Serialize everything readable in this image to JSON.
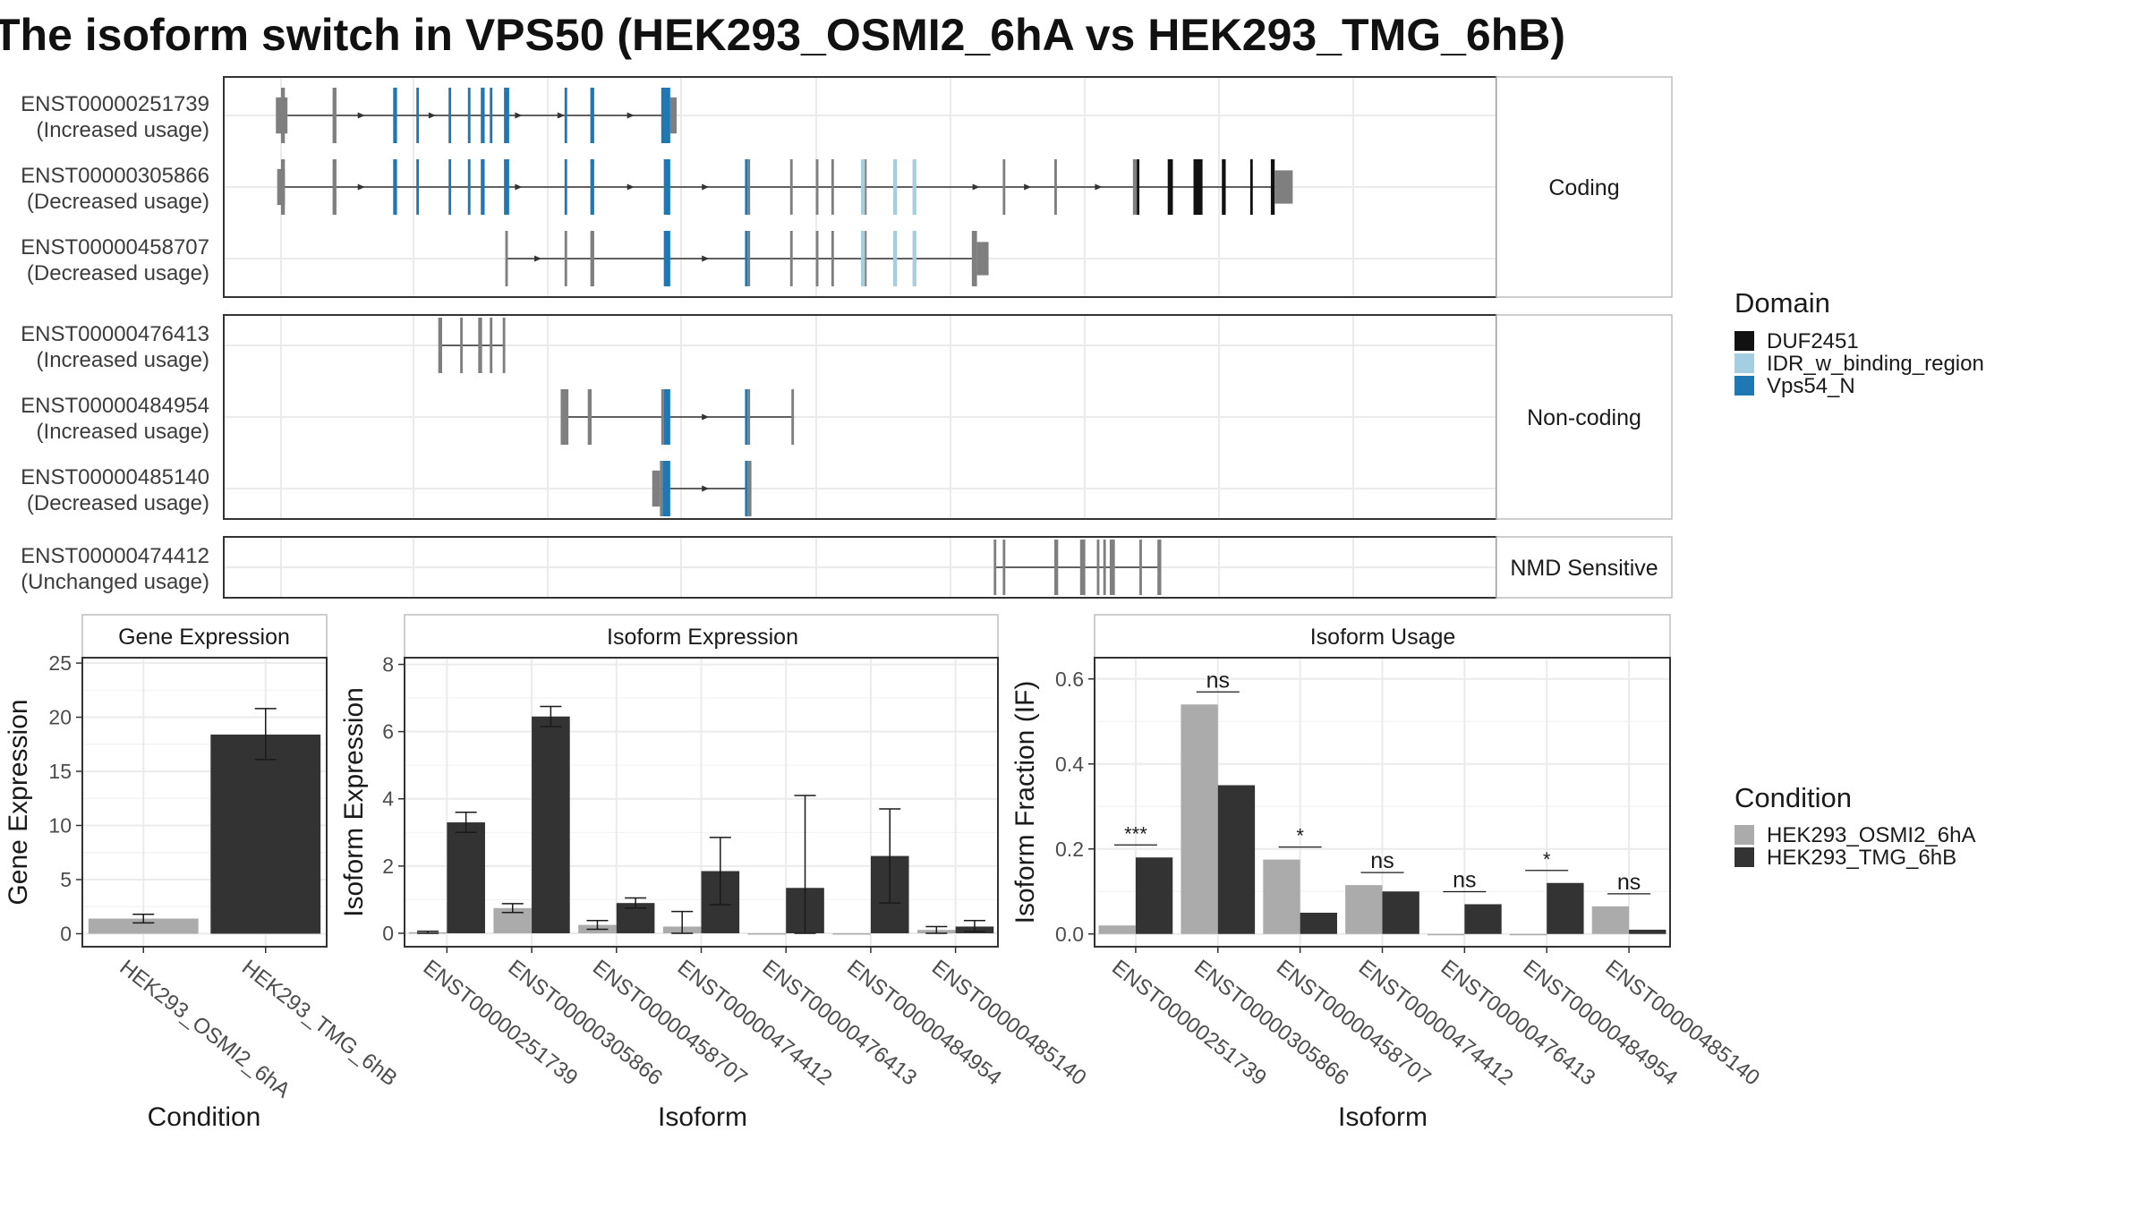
{
  "title": "The isoform switch in VPS50 (HEK293_OSMI2_6hA vs HEK293_TMG_6hB)",
  "colors": {
    "condition_a": "#ABABAB",
    "condition_b": "#333333",
    "exon": "#7F7F7F",
    "intron": "#333333",
    "DUF2451": "#111111",
    "IDR_w_binding_region": "#A6CEE3",
    "Vps54_N": "#1F78B4",
    "panel_border": "#333333",
    "strip_border": "#bdbdbd",
    "grid": "#ebebeb"
  },
  "legends": {
    "domain": {
      "title": "Domain",
      "items": [
        {
          "label": "DUF2451",
          "color": "#111111"
        },
        {
          "label": "IDR_w_binding_region",
          "color": "#A6CEE3"
        },
        {
          "label": "Vps54_N",
          "color": "#1F78B4"
        }
      ]
    },
    "condition": {
      "title": "Condition",
      "items": [
        {
          "label": "HEK293_OSMI2_6hA",
          "color": "#ABABAB"
        },
        {
          "label": "HEK293_TMG_6hB",
          "color": "#333333"
        }
      ]
    }
  },
  "structure": {
    "groups": [
      {
        "label": "Coding",
        "transcripts": [
          {
            "id": "ENST00000251739",
            "status": "(Increased usage)",
            "exons": [
              [
                -0.4,
                0.5,
                0.65,
                "exon"
              ],
              [
                0.0,
                0.3,
                1.0,
                "exon"
              ],
              [
                4.0,
                4.3,
                1.0,
                "exon"
              ],
              [
                8.7,
                9.0,
                1.0,
                "Vps54_N"
              ],
              [
                10.5,
                10.7,
                1.0,
                "Vps54_N"
              ],
              [
                13.0,
                13.2,
                1.0,
                "Vps54_N"
              ],
              [
                14.5,
                14.7,
                1.0,
                "Vps54_N"
              ],
              [
                15.5,
                15.8,
                1.0,
                "Vps54_N"
              ],
              [
                16.2,
                16.4,
                1.0,
                "Vps54_N"
              ],
              [
                17.3,
                17.7,
                1.0,
                "Vps54_N"
              ],
              [
                22.0,
                22.2,
                1.0,
                "Vps54_N"
              ],
              [
                24.0,
                24.3,
                1.0,
                "Vps54_N"
              ],
              [
                29.5,
                30.2,
                1.0,
                "Vps54_N"
              ],
              [
                30.2,
                30.7,
                0.65,
                "exon"
              ]
            ],
            "intron": [
              0.5,
              30.2
            ],
            "arrows": [
              6.3,
              11.8,
              18.5,
              21.8,
              27.2
            ]
          },
          {
            "id": "ENST00000305866",
            "status": "(Decreased usage)",
            "exons": [
              [
                -0.3,
                0.3,
                0.65,
                "exon"
              ],
              [
                0.0,
                0.3,
                1.0,
                "exon"
              ],
              [
                4.0,
                4.3,
                1.0,
                "exon"
              ],
              [
                8.7,
                9.0,
                1.0,
                "Vps54_N"
              ],
              [
                10.5,
                10.7,
                1.0,
                "Vps54_N"
              ],
              [
                13.0,
                13.2,
                1.0,
                "Vps54_N"
              ],
              [
                14.5,
                14.7,
                1.0,
                "Vps54_N"
              ],
              [
                15.5,
                15.8,
                1.0,
                "Vps54_N"
              ],
              [
                17.3,
                17.7,
                1.0,
                "Vps54_N"
              ],
              [
                22.0,
                22.2,
                1.0,
                "Vps54_N"
              ],
              [
                24.0,
                24.3,
                1.0,
                "Vps54_N"
              ],
              [
                29.7,
                30.2,
                1.0,
                "Vps54_N"
              ],
              [
                36.0,
                36.2,
                1.0,
                "Vps54_N"
              ],
              [
                36.2,
                36.4,
                1.0,
                "exon"
              ],
              [
                39.5,
                39.7,
                1.0,
                "exon"
              ],
              [
                41.5,
                41.7,
                1.0,
                "exon"
              ],
              [
                42.7,
                42.9,
                1.0,
                "exon"
              ],
              [
                45.0,
                45.3,
                1.0,
                "IDR_w_binding_region"
              ],
              [
                45.3,
                45.4,
                1.0,
                "exon"
              ],
              [
                47.5,
                47.8,
                1.0,
                "IDR_w_binding_region"
              ],
              [
                49.0,
                49.3,
                1.0,
                "IDR_w_binding_region"
              ],
              [
                56.0,
                56.2,
                1.0,
                "exon"
              ],
              [
                60.0,
                60.2,
                1.0,
                "exon"
              ],
              [
                66.1,
                66.4,
                1.0,
                "exon"
              ],
              [
                66.4,
                66.6,
                1.0,
                "DUF2451"
              ],
              [
                68.8,
                69.2,
                1.0,
                "DUF2451"
              ],
              [
                70.8,
                71.5,
                1.0,
                "DUF2451"
              ],
              [
                73.0,
                73.3,
                1.0,
                "DUF2451"
              ],
              [
                75.2,
                75.4,
                1.0,
                "DUF2451"
              ],
              [
                76.8,
                77.1,
                1.0,
                "DUF2451"
              ],
              [
                77.1,
                78.5,
                0.6,
                "exon"
              ]
            ],
            "intron": [
              0.3,
              77.5
            ],
            "arrows": [
              6.3,
              18.5,
              27.2,
              33.0,
              54.0,
              58.0,
              63.5
            ]
          },
          {
            "id": "ENST00000458707",
            "status": "(Decreased usage)",
            "exons": [
              [
                17.4,
                17.6,
                1.0,
                "exon"
              ],
              [
                22.0,
                22.2,
                1.0,
                "exon"
              ],
              [
                24.0,
                24.3,
                1.0,
                "exon"
              ],
              [
                29.7,
                30.2,
                1.0,
                "Vps54_N"
              ],
              [
                36.0,
                36.2,
                1.0,
                "Vps54_N"
              ],
              [
                36.2,
                36.4,
                1.0,
                "exon"
              ],
              [
                39.5,
                39.7,
                1.0,
                "exon"
              ],
              [
                41.5,
                41.7,
                1.0,
                "exon"
              ],
              [
                42.7,
                42.9,
                1.0,
                "exon"
              ],
              [
                45.0,
                45.3,
                1.0,
                "IDR_w_binding_region"
              ],
              [
                45.3,
                45.4,
                1.0,
                "exon"
              ],
              [
                47.5,
                47.8,
                1.0,
                "IDR_w_binding_region"
              ],
              [
                49.0,
                49.3,
                1.0,
                "IDR_w_binding_region"
              ],
              [
                53.6,
                54.0,
                1.0,
                "exon"
              ],
              [
                54.0,
                54.9,
                0.6,
                "exon"
              ]
            ],
            "intron": [
              17.5,
              54.0
            ],
            "arrows": [
              20.0,
              33.0
            ]
          }
        ]
      },
      {
        "label": "Non-coding",
        "transcripts": [
          {
            "id": "ENST00000476413",
            "status": "(Increased usage)",
            "exons": [
              [
                12.2,
                12.5,
                1.0,
                "exon"
              ],
              [
                13.9,
                14.1,
                1.0,
                "exon"
              ],
              [
                15.3,
                15.6,
                1.0,
                "exon"
              ],
              [
                16.2,
                16.4,
                1.0,
                "exon"
              ],
              [
                17.2,
                17.4,
                1.0,
                "exon"
              ]
            ],
            "intron": [
              12.4,
              17.4
            ],
            "arrows": []
          },
          {
            "id": "ENST00000484954",
            "status": "(Increased usage)",
            "exons": [
              [
                21.7,
                22.3,
                1.0,
                "exon"
              ],
              [
                23.8,
                24.1,
                1.0,
                "exon"
              ],
              [
                29.5,
                29.7,
                1.0,
                "exon"
              ],
              [
                29.7,
                30.2,
                1.0,
                "Vps54_N"
              ],
              [
                36.0,
                36.2,
                1.0,
                "Vps54_N"
              ],
              [
                36.2,
                36.4,
                1.0,
                "exon"
              ],
              [
                39.6,
                39.8,
                1.0,
                "exon"
              ]
            ],
            "intron": [
              22.0,
              39.8
            ],
            "arrows": [
              33.0
            ]
          },
          {
            "id": "ENST00000485140",
            "status": "(Decreased usage)",
            "exons": [
              [
                28.8,
                29.4,
                0.65,
                "exon"
              ],
              [
                29.4,
                29.6,
                1.0,
                "exon"
              ],
              [
                29.6,
                30.2,
                1.0,
                "Vps54_N"
              ],
              [
                36.0,
                36.2,
                1.0,
                "Vps54_N"
              ],
              [
                36.2,
                36.5,
                1.0,
                "exon"
              ]
            ],
            "intron": [
              29.5,
              36.3
            ],
            "arrows": [
              33.0
            ]
          }
        ]
      },
      {
        "label": "NMD Sensitive",
        "transcripts": [
          {
            "id": "ENST00000474412",
            "status": "(Unchanged usage)",
            "exons": [
              [
                55.3,
                55.5,
                1.0,
                "exon"
              ],
              [
                56.0,
                56.2,
                1.0,
                "exon"
              ],
              [
                60.0,
                60.3,
                1.0,
                "exon"
              ],
              [
                62.0,
                62.4,
                1.0,
                "exon"
              ],
              [
                63.3,
                63.5,
                1.0,
                "exon"
              ],
              [
                63.8,
                64.0,
                1.0,
                "exon"
              ],
              [
                64.3,
                64.7,
                1.0,
                "exon"
              ],
              [
                66.6,
                66.8,
                1.0,
                "exon"
              ],
              [
                68.0,
                68.3,
                1.0,
                "exon"
              ]
            ],
            "intron": [
              55.4,
              68.2
            ],
            "arrows": []
          }
        ]
      }
    ]
  },
  "chart_data": [
    {
      "type": "bar",
      "panel": "Gene Expression",
      "xlabel": "Condition",
      "ylabel": "Gene Expression",
      "categories": [
        "HEK293_OSMI2_6hA",
        "HEK293_TMG_6hB"
      ],
      "values": [
        1.4,
        18.4
      ],
      "error": [
        [
          1.0,
          1.8
        ],
        [
          16.1,
          20.8
        ]
      ],
      "yticks": [
        0,
        5,
        10,
        15,
        20,
        25
      ],
      "ylim": [
        -1.2,
        25.5
      ]
    },
    {
      "type": "bar",
      "panel": "Isoform Expression",
      "xlabel": "Isoform",
      "ylabel": "Isoform Expression",
      "categories": [
        "ENST00000251739",
        "ENST00000305866",
        "ENST00000458707",
        "ENST00000474412",
        "ENST00000476413",
        "ENST00000484954",
        "ENST00000485140"
      ],
      "series": [
        {
          "name": "HEK293_OSMI2_6hA",
          "values": [
            0.03,
            0.75,
            0.25,
            0.2,
            0.0,
            0.0,
            0.1
          ],
          "error": [
            [
              0.0,
              0.06
            ],
            [
              0.62,
              0.88
            ],
            [
              0.12,
              0.38
            ],
            [
              0.0,
              0.65
            ],
            [
              0,
              0
            ],
            [
              0,
              0
            ],
            [
              0.0,
              0.2
            ]
          ]
        },
        {
          "name": "HEK293_TMG_6hB",
          "values": [
            3.3,
            6.45,
            0.9,
            1.85,
            1.35,
            2.3,
            0.2
          ],
          "error": [
            [
              3.0,
              3.6
            ],
            [
              6.15,
              6.75
            ],
            [
              0.75,
              1.05
            ],
            [
              0.85,
              2.85
            ],
            [
              0.0,
              4.1
            ],
            [
              0.9,
              3.7
            ],
            [
              0.05,
              0.38
            ]
          ]
        }
      ],
      "yticks": [
        0,
        2,
        4,
        6,
        8
      ],
      "ylim": [
        -0.4,
        8.2
      ]
    },
    {
      "type": "bar",
      "panel": "Isoform Usage",
      "xlabel": "Isoform",
      "ylabel": "Isoform Fraction (IF)",
      "categories": [
        "ENST00000251739",
        "ENST00000305866",
        "ENST00000458707",
        "ENST00000474412",
        "ENST00000476413",
        "ENST00000484954",
        "ENST00000485140"
      ],
      "series": [
        {
          "name": "HEK293_OSMI2_6hA",
          "values": [
            0.02,
            0.54,
            0.175,
            0.115,
            0.0,
            0.0,
            0.065
          ]
        },
        {
          "name": "HEK293_TMG_6hB",
          "values": [
            0.18,
            0.35,
            0.05,
            0.1,
            0.07,
            0.12,
            0.01
          ]
        }
      ],
      "significance": [
        "***",
        "ns",
        "*",
        "ns",
        "ns",
        "*",
        "ns"
      ],
      "yticks": [
        0.0,
        0.2,
        0.4,
        0.6
      ],
      "ylim": [
        -0.03,
        0.65
      ]
    }
  ]
}
